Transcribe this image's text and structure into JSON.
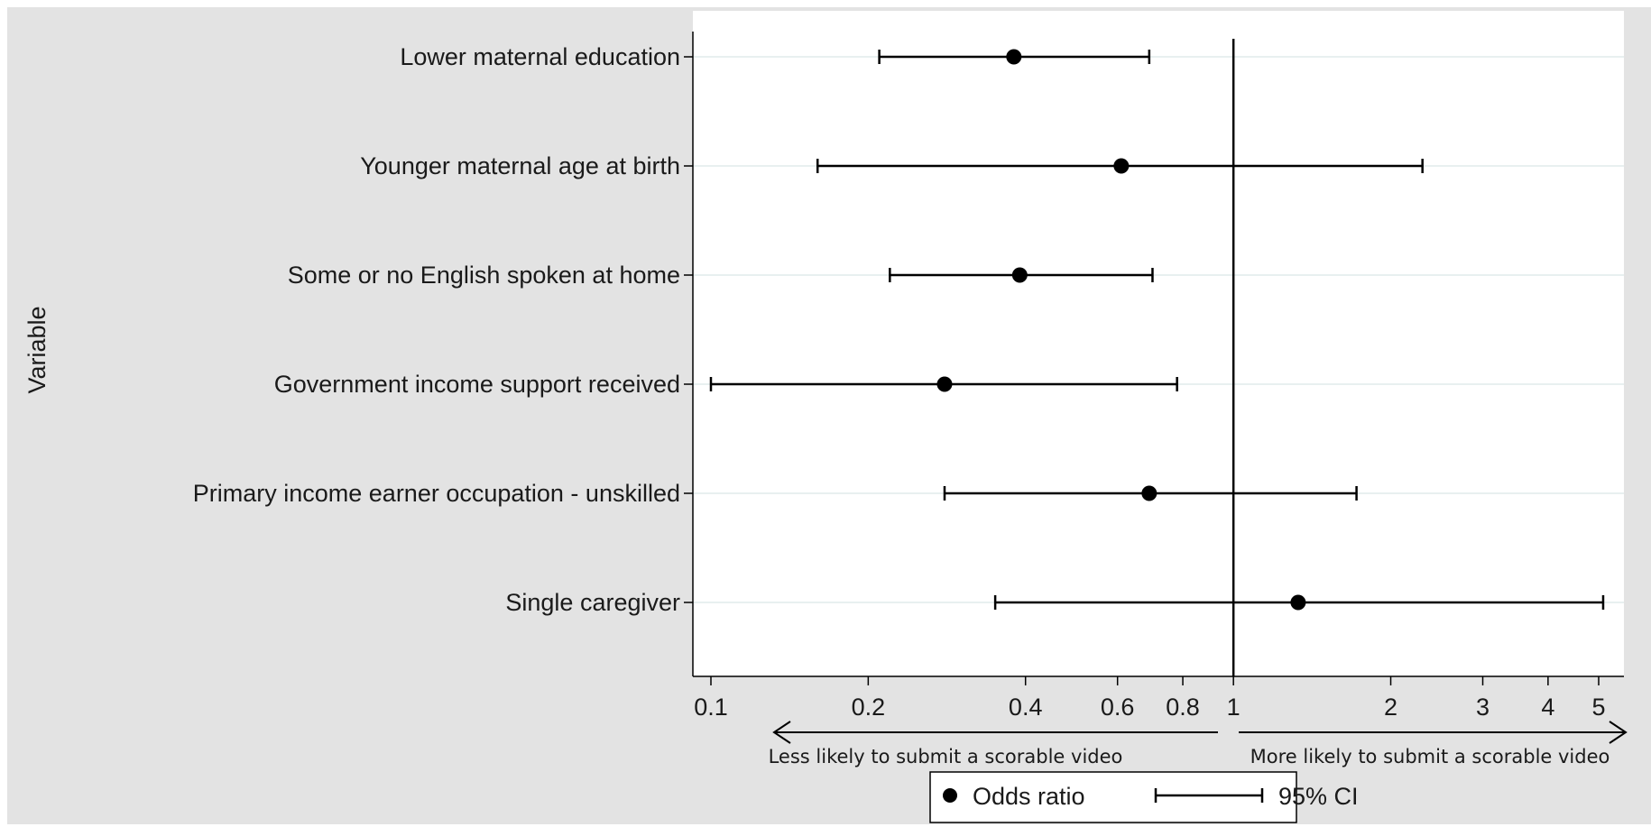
{
  "chart_data": {
    "type": "forest",
    "ylabel": "Variable",
    "x_scale": "log",
    "xlim": [
      0.1,
      5.0
    ],
    "x_ticks": [
      0.1,
      0.2,
      0.4,
      0.6,
      0.8,
      1,
      2,
      3,
      4,
      5
    ],
    "x_tick_labels": [
      "0.1",
      "0.2",
      "0.4",
      "0.6",
      "0.8",
      "1",
      "2",
      "3",
      "4",
      "5"
    ],
    "reference_line": 1,
    "categories": [
      "Lower maternal education",
      "Younger maternal age at birth",
      "Some or no English spoken at home",
      "Government income support received",
      "Primary income earner occupation - unskilled",
      "Single caregiver"
    ],
    "series": [
      {
        "name": "Odds ratio",
        "values": [
          0.38,
          0.61,
          0.39,
          0.28,
          0.69,
          1.33
        ]
      },
      {
        "name": "95% CI",
        "lower": [
          0.21,
          0.16,
          0.22,
          0.1,
          0.28,
          0.35
        ],
        "upper": [
          0.69,
          2.3,
          0.7,
          0.78,
          1.72,
          5.1
        ]
      }
    ],
    "annotations": {
      "left": "Less likely to submit a scorable video",
      "right": "More likely to submit a scorable video"
    },
    "grid": true,
    "legend_position": "bottom-center",
    "colors": {
      "background": "#e3e3e3",
      "plot": "#ffffff",
      "grid": "#e8f0f0",
      "ink": "#000000"
    }
  }
}
